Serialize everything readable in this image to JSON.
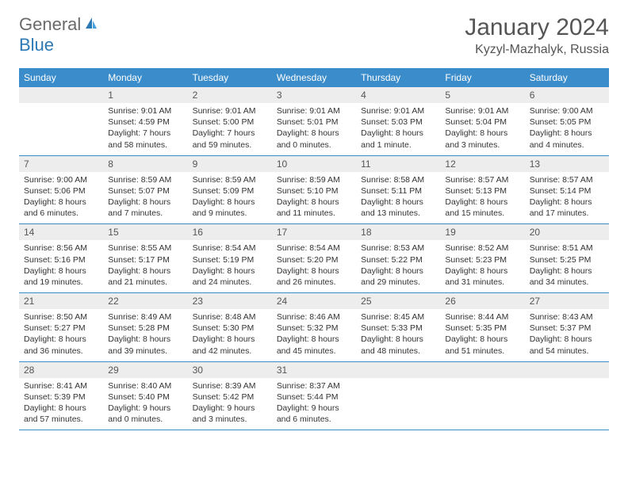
{
  "logo": {
    "general": "General",
    "blue": "Blue"
  },
  "title": "January 2024",
  "location": "Kyzyl-Mazhalyk, Russia",
  "colors": {
    "header_bg": "#3b8cca",
    "header_text": "#ffffff",
    "daynum_bg": "#ededed",
    "text": "#333333",
    "accent": "#2d79b5"
  },
  "day_headers": [
    "Sunday",
    "Monday",
    "Tuesday",
    "Wednesday",
    "Thursday",
    "Friday",
    "Saturday"
  ],
  "weeks": [
    [
      {
        "n": "",
        "sr": "",
        "ss": "",
        "dl": ""
      },
      {
        "n": "1",
        "sr": "Sunrise: 9:01 AM",
        "ss": "Sunset: 4:59 PM",
        "dl": "Daylight: 7 hours and 58 minutes."
      },
      {
        "n": "2",
        "sr": "Sunrise: 9:01 AM",
        "ss": "Sunset: 5:00 PM",
        "dl": "Daylight: 7 hours and 59 minutes."
      },
      {
        "n": "3",
        "sr": "Sunrise: 9:01 AM",
        "ss": "Sunset: 5:01 PM",
        "dl": "Daylight: 8 hours and 0 minutes."
      },
      {
        "n": "4",
        "sr": "Sunrise: 9:01 AM",
        "ss": "Sunset: 5:03 PM",
        "dl": "Daylight: 8 hours and 1 minute."
      },
      {
        "n": "5",
        "sr": "Sunrise: 9:01 AM",
        "ss": "Sunset: 5:04 PM",
        "dl": "Daylight: 8 hours and 3 minutes."
      },
      {
        "n": "6",
        "sr": "Sunrise: 9:00 AM",
        "ss": "Sunset: 5:05 PM",
        "dl": "Daylight: 8 hours and 4 minutes."
      }
    ],
    [
      {
        "n": "7",
        "sr": "Sunrise: 9:00 AM",
        "ss": "Sunset: 5:06 PM",
        "dl": "Daylight: 8 hours and 6 minutes."
      },
      {
        "n": "8",
        "sr": "Sunrise: 8:59 AM",
        "ss": "Sunset: 5:07 PM",
        "dl": "Daylight: 8 hours and 7 minutes."
      },
      {
        "n": "9",
        "sr": "Sunrise: 8:59 AM",
        "ss": "Sunset: 5:09 PM",
        "dl": "Daylight: 8 hours and 9 minutes."
      },
      {
        "n": "10",
        "sr": "Sunrise: 8:59 AM",
        "ss": "Sunset: 5:10 PM",
        "dl": "Daylight: 8 hours and 11 minutes."
      },
      {
        "n": "11",
        "sr": "Sunrise: 8:58 AM",
        "ss": "Sunset: 5:11 PM",
        "dl": "Daylight: 8 hours and 13 minutes."
      },
      {
        "n": "12",
        "sr": "Sunrise: 8:57 AM",
        "ss": "Sunset: 5:13 PM",
        "dl": "Daylight: 8 hours and 15 minutes."
      },
      {
        "n": "13",
        "sr": "Sunrise: 8:57 AM",
        "ss": "Sunset: 5:14 PM",
        "dl": "Daylight: 8 hours and 17 minutes."
      }
    ],
    [
      {
        "n": "14",
        "sr": "Sunrise: 8:56 AM",
        "ss": "Sunset: 5:16 PM",
        "dl": "Daylight: 8 hours and 19 minutes."
      },
      {
        "n": "15",
        "sr": "Sunrise: 8:55 AM",
        "ss": "Sunset: 5:17 PM",
        "dl": "Daylight: 8 hours and 21 minutes."
      },
      {
        "n": "16",
        "sr": "Sunrise: 8:54 AM",
        "ss": "Sunset: 5:19 PM",
        "dl": "Daylight: 8 hours and 24 minutes."
      },
      {
        "n": "17",
        "sr": "Sunrise: 8:54 AM",
        "ss": "Sunset: 5:20 PM",
        "dl": "Daylight: 8 hours and 26 minutes."
      },
      {
        "n": "18",
        "sr": "Sunrise: 8:53 AM",
        "ss": "Sunset: 5:22 PM",
        "dl": "Daylight: 8 hours and 29 minutes."
      },
      {
        "n": "19",
        "sr": "Sunrise: 8:52 AM",
        "ss": "Sunset: 5:23 PM",
        "dl": "Daylight: 8 hours and 31 minutes."
      },
      {
        "n": "20",
        "sr": "Sunrise: 8:51 AM",
        "ss": "Sunset: 5:25 PM",
        "dl": "Daylight: 8 hours and 34 minutes."
      }
    ],
    [
      {
        "n": "21",
        "sr": "Sunrise: 8:50 AM",
        "ss": "Sunset: 5:27 PM",
        "dl": "Daylight: 8 hours and 36 minutes."
      },
      {
        "n": "22",
        "sr": "Sunrise: 8:49 AM",
        "ss": "Sunset: 5:28 PM",
        "dl": "Daylight: 8 hours and 39 minutes."
      },
      {
        "n": "23",
        "sr": "Sunrise: 8:48 AM",
        "ss": "Sunset: 5:30 PM",
        "dl": "Daylight: 8 hours and 42 minutes."
      },
      {
        "n": "24",
        "sr": "Sunrise: 8:46 AM",
        "ss": "Sunset: 5:32 PM",
        "dl": "Daylight: 8 hours and 45 minutes."
      },
      {
        "n": "25",
        "sr": "Sunrise: 8:45 AM",
        "ss": "Sunset: 5:33 PM",
        "dl": "Daylight: 8 hours and 48 minutes."
      },
      {
        "n": "26",
        "sr": "Sunrise: 8:44 AM",
        "ss": "Sunset: 5:35 PM",
        "dl": "Daylight: 8 hours and 51 minutes."
      },
      {
        "n": "27",
        "sr": "Sunrise: 8:43 AM",
        "ss": "Sunset: 5:37 PM",
        "dl": "Daylight: 8 hours and 54 minutes."
      }
    ],
    [
      {
        "n": "28",
        "sr": "Sunrise: 8:41 AM",
        "ss": "Sunset: 5:39 PM",
        "dl": "Daylight: 8 hours and 57 minutes."
      },
      {
        "n": "29",
        "sr": "Sunrise: 8:40 AM",
        "ss": "Sunset: 5:40 PM",
        "dl": "Daylight: 9 hours and 0 minutes."
      },
      {
        "n": "30",
        "sr": "Sunrise: 8:39 AM",
        "ss": "Sunset: 5:42 PM",
        "dl": "Daylight: 9 hours and 3 minutes."
      },
      {
        "n": "31",
        "sr": "Sunrise: 8:37 AM",
        "ss": "Sunset: 5:44 PM",
        "dl": "Daylight: 9 hours and 6 minutes."
      },
      {
        "n": "",
        "sr": "",
        "ss": "",
        "dl": ""
      },
      {
        "n": "",
        "sr": "",
        "ss": "",
        "dl": ""
      },
      {
        "n": "",
        "sr": "",
        "ss": "",
        "dl": ""
      }
    ]
  ]
}
